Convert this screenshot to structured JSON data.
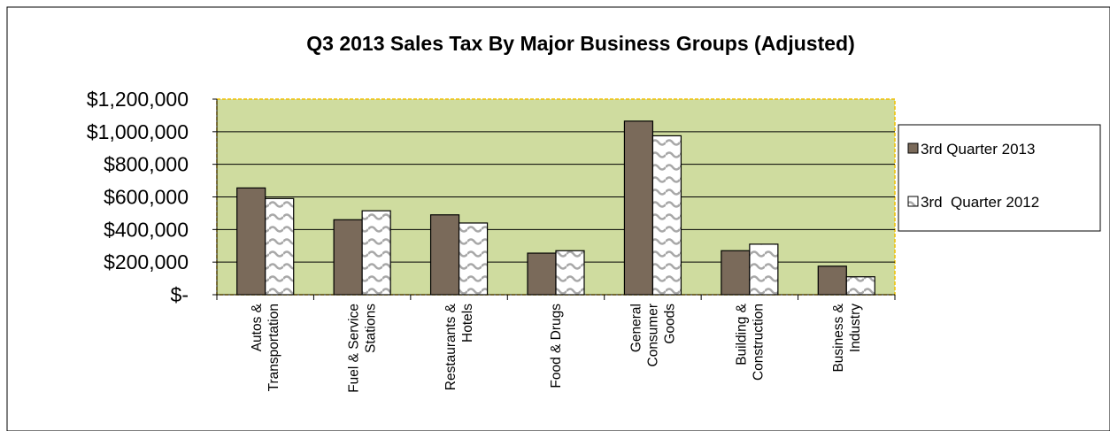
{
  "chart_data": {
    "type": "bar",
    "title": "Q3 2013 Sales Tax By Major Business Groups (Adjusted)",
    "categories": [
      [
        "Autos &",
        "Transportation"
      ],
      [
        "Fuel & Service",
        "Stations"
      ],
      [
        "Restaurants &",
        "Hotels"
      ],
      [
        "Food & Drugs"
      ],
      [
        "General",
        "Consumer",
        "Goods"
      ],
      [
        "Building &",
        "Construction"
      ],
      [
        "Business &",
        "Industry"
      ]
    ],
    "series": [
      {
        "name": "3rd Quarter 2013",
        "values": [
          655000,
          460000,
          490000,
          255000,
          1065000,
          270000,
          175000
        ],
        "color": "#7a6a5a",
        "pattern": "solid"
      },
      {
        "name": "3rd  Quarter 2012",
        "values": [
          590000,
          515000,
          440000,
          270000,
          975000,
          310000,
          110000
        ],
        "color": "#ffffff",
        "pattern": "wave"
      }
    ],
    "yticks": [
      "$-",
      "$200,000",
      "$400,000",
      "$600,000",
      "$800,000",
      "$1,000,000",
      "$1,200,000"
    ],
    "ylim": [
      0,
      1200000
    ],
    "ytick_step": 200000,
    "xlabel": "",
    "ylabel": "",
    "grid": true,
    "legend_position": "right",
    "plot_background": "#cfdc9f",
    "plot_border_color": "#f0c000"
  }
}
